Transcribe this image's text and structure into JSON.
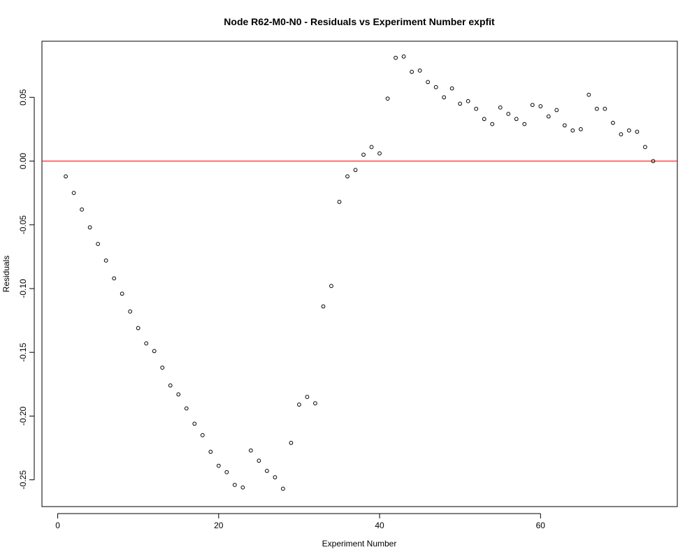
{
  "chart_data": {
    "type": "scatter",
    "title": "Node R62-M0-N0 - Residuals vs Experiment Number expfit",
    "xlabel": "Experiment Number",
    "ylabel": "Residuals",
    "xlim": [
      -1.96,
      77
    ],
    "ylim": [
      -0.271,
      0.094
    ],
    "x_ticks": [
      0,
      20,
      40,
      60
    ],
    "x_tick_labels": [
      "0",
      "20",
      "40",
      "60"
    ],
    "y_ticks": [
      -0.25,
      -0.2,
      -0.15,
      -0.1,
      -0.05,
      0.0,
      0.05
    ],
    "y_tick_labels": [
      "-0.25",
      "-0.20",
      "-0.15",
      "-0.10",
      "-0.05",
      "0.00",
      "0.05"
    ],
    "grid": false,
    "reference_line": {
      "y": 0,
      "color": "#ff0000"
    },
    "point_color": "#000000",
    "series": [
      {
        "x": [
          1,
          2,
          3,
          4,
          5,
          6,
          7,
          8,
          9,
          10,
          11,
          12,
          13,
          14,
          15,
          16,
          17,
          18,
          19,
          20,
          21,
          22,
          23,
          24,
          25,
          26,
          27,
          28,
          29,
          30,
          31,
          32,
          33,
          34,
          35,
          36,
          37,
          38,
          39,
          40,
          41,
          42,
          43,
          44,
          45,
          46,
          47,
          48,
          49,
          50,
          51,
          52,
          53,
          54,
          55,
          56,
          57,
          58,
          59,
          60,
          61,
          62,
          63,
          64,
          65,
          66,
          67,
          68,
          69,
          70,
          71,
          72,
          73,
          74
        ],
        "y": [
          -0.012,
          -0.025,
          -0.038,
          -0.052,
          -0.065,
          -0.078,
          -0.092,
          -0.104,
          -0.118,
          -0.131,
          -0.143,
          -0.149,
          -0.162,
          -0.176,
          -0.183,
          -0.194,
          -0.206,
          -0.215,
          -0.228,
          -0.239,
          -0.244,
          -0.254,
          -0.256,
          -0.227,
          -0.235,
          -0.243,
          -0.248,
          -0.257,
          -0.221,
          -0.191,
          -0.185,
          -0.19,
          -0.114,
          -0.098,
          -0.032,
          -0.012,
          -0.007,
          0.005,
          0.011,
          0.006,
          0.049,
          0.081,
          0.082,
          0.07,
          0.071,
          0.062,
          0.058,
          0.05,
          0.057,
          0.045,
          0.047,
          0.041,
          0.033,
          0.029,
          0.042,
          0.037,
          0.033,
          0.029,
          0.044,
          0.043,
          0.035,
          0.04,
          0.028,
          0.024,
          0.025,
          0.052,
          0.041,
          0.041,
          0.03,
          0.021,
          0.024,
          0.023,
          0.011,
          0.0
        ]
      }
    ]
  }
}
